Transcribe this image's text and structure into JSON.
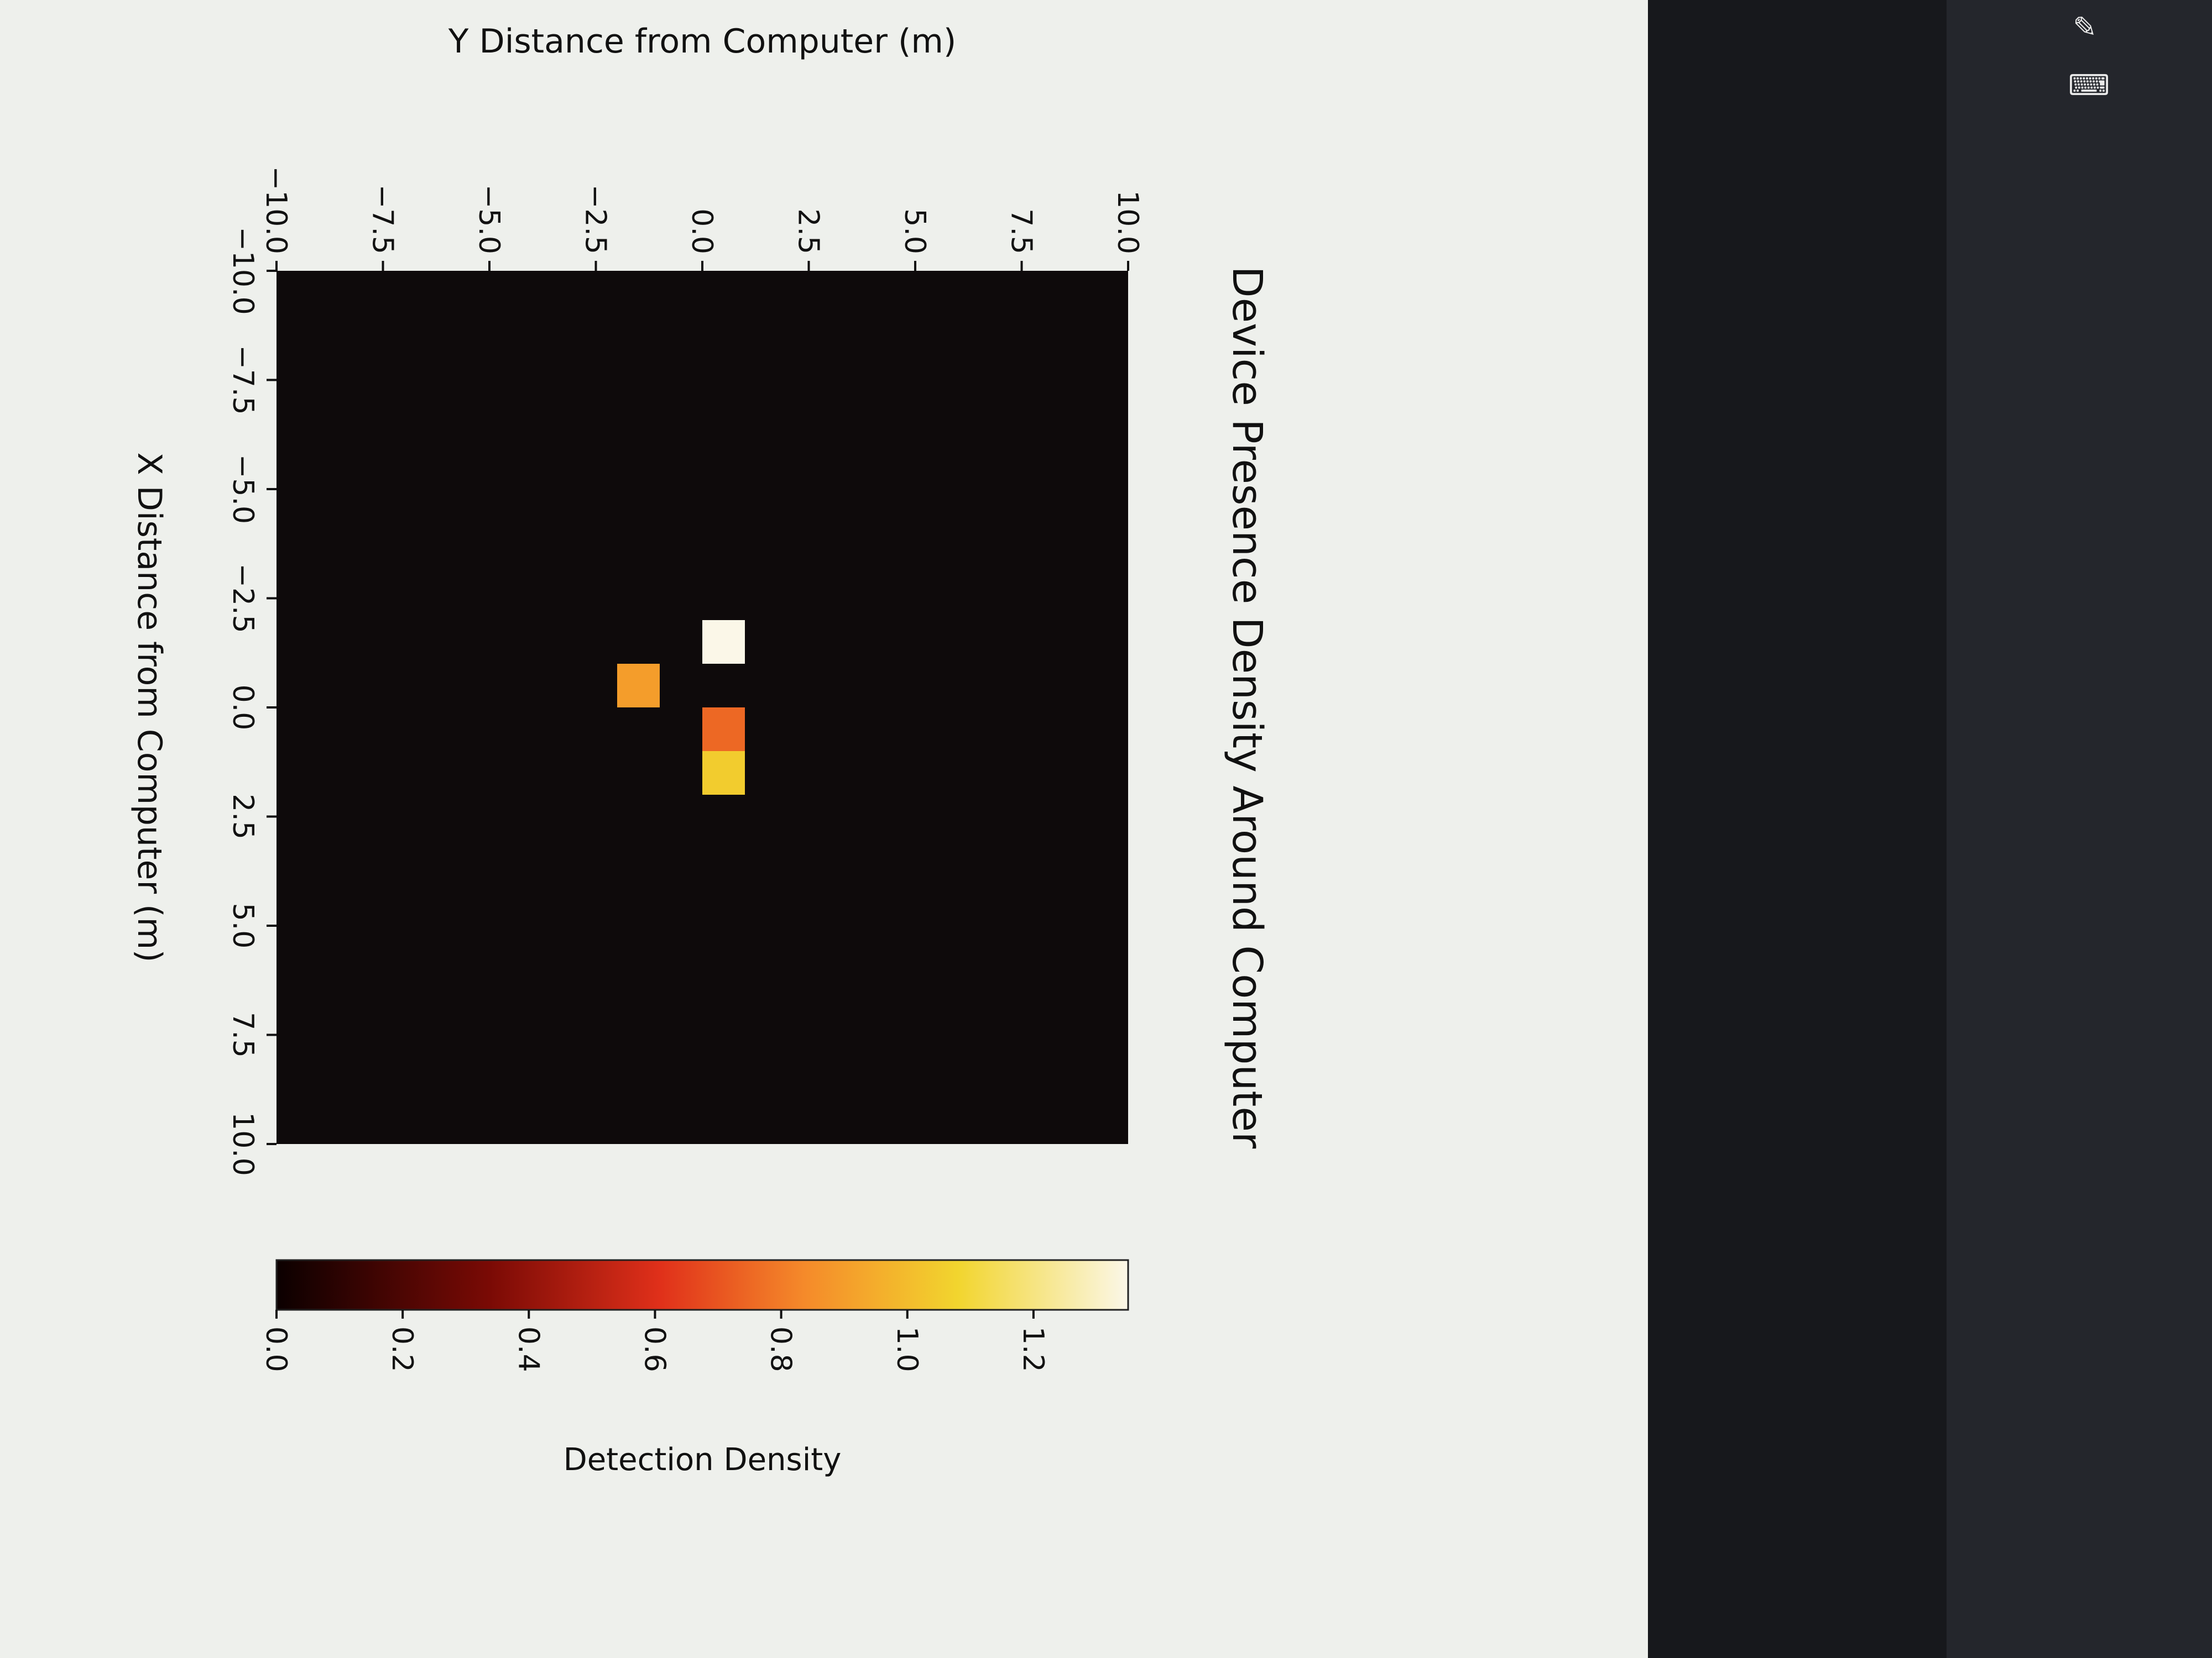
{
  "chart_data": {
    "type": "heatmap",
    "title": "Device Presence Density Around Computer",
    "xlabel": "X Distance from Computer (m)",
    "ylabel": "Y Distance from Computer (m)",
    "xlim": [
      -10.0,
      10.0
    ],
    "ylim": [
      -10.0,
      10.0
    ],
    "x_ticks": [
      "−10.0",
      "−7.5",
      "−5.0",
      "−2.5",
      "0.0",
      "2.5",
      "5.0",
      "7.5",
      "10.0"
    ],
    "x_tick_values": [
      -10.0,
      -7.5,
      -5.0,
      -2.5,
      0.0,
      2.5,
      5.0,
      7.5,
      10.0
    ],
    "y_ticks": [
      "−10.0",
      "−7.5",
      "−5.0",
      "−2.5",
      "0.0",
      "2.5",
      "5.0",
      "7.5",
      "10.0"
    ],
    "y_tick_values": [
      -10.0,
      -7.5,
      -5.0,
      -2.5,
      0.0,
      2.5,
      5.0,
      7.5,
      10.0
    ],
    "colormap": "hot",
    "background_value": 0.0,
    "cells": [
      {
        "x0": -2.0,
        "x1": -1.0,
        "y0": 0.0,
        "y1": 1.0,
        "value": 1.35
      },
      {
        "x0": 0.0,
        "x1": 1.0,
        "y0": 0.0,
        "y1": 1.0,
        "value": 0.75
      },
      {
        "x0": 1.0,
        "x1": 2.0,
        "y0": 0.0,
        "y1": 1.0,
        "value": 1.05
      },
      {
        "x0": -1.0,
        "x1": 0.0,
        "y0": -2.0,
        "y1": -1.0,
        "value": 0.9
      }
    ],
    "colorbar": {
      "label": "Detection Density",
      "vmin": 0.0,
      "vmax": 1.35,
      "ticks": [
        "0.0",
        "0.2",
        "0.4",
        "0.6",
        "0.8",
        "1.0",
        "1.2"
      ],
      "tick_values": [
        0.0,
        0.2,
        0.4,
        0.6,
        0.8,
        1.0,
        1.2
      ]
    }
  },
  "colors": {
    "figure_background": "#eef0ec",
    "plot_background": "#0e0a0b",
    "text": "#111111"
  },
  "taskbar": {
    "icons": [
      "pen-icon",
      "keyboard-icon"
    ]
  }
}
